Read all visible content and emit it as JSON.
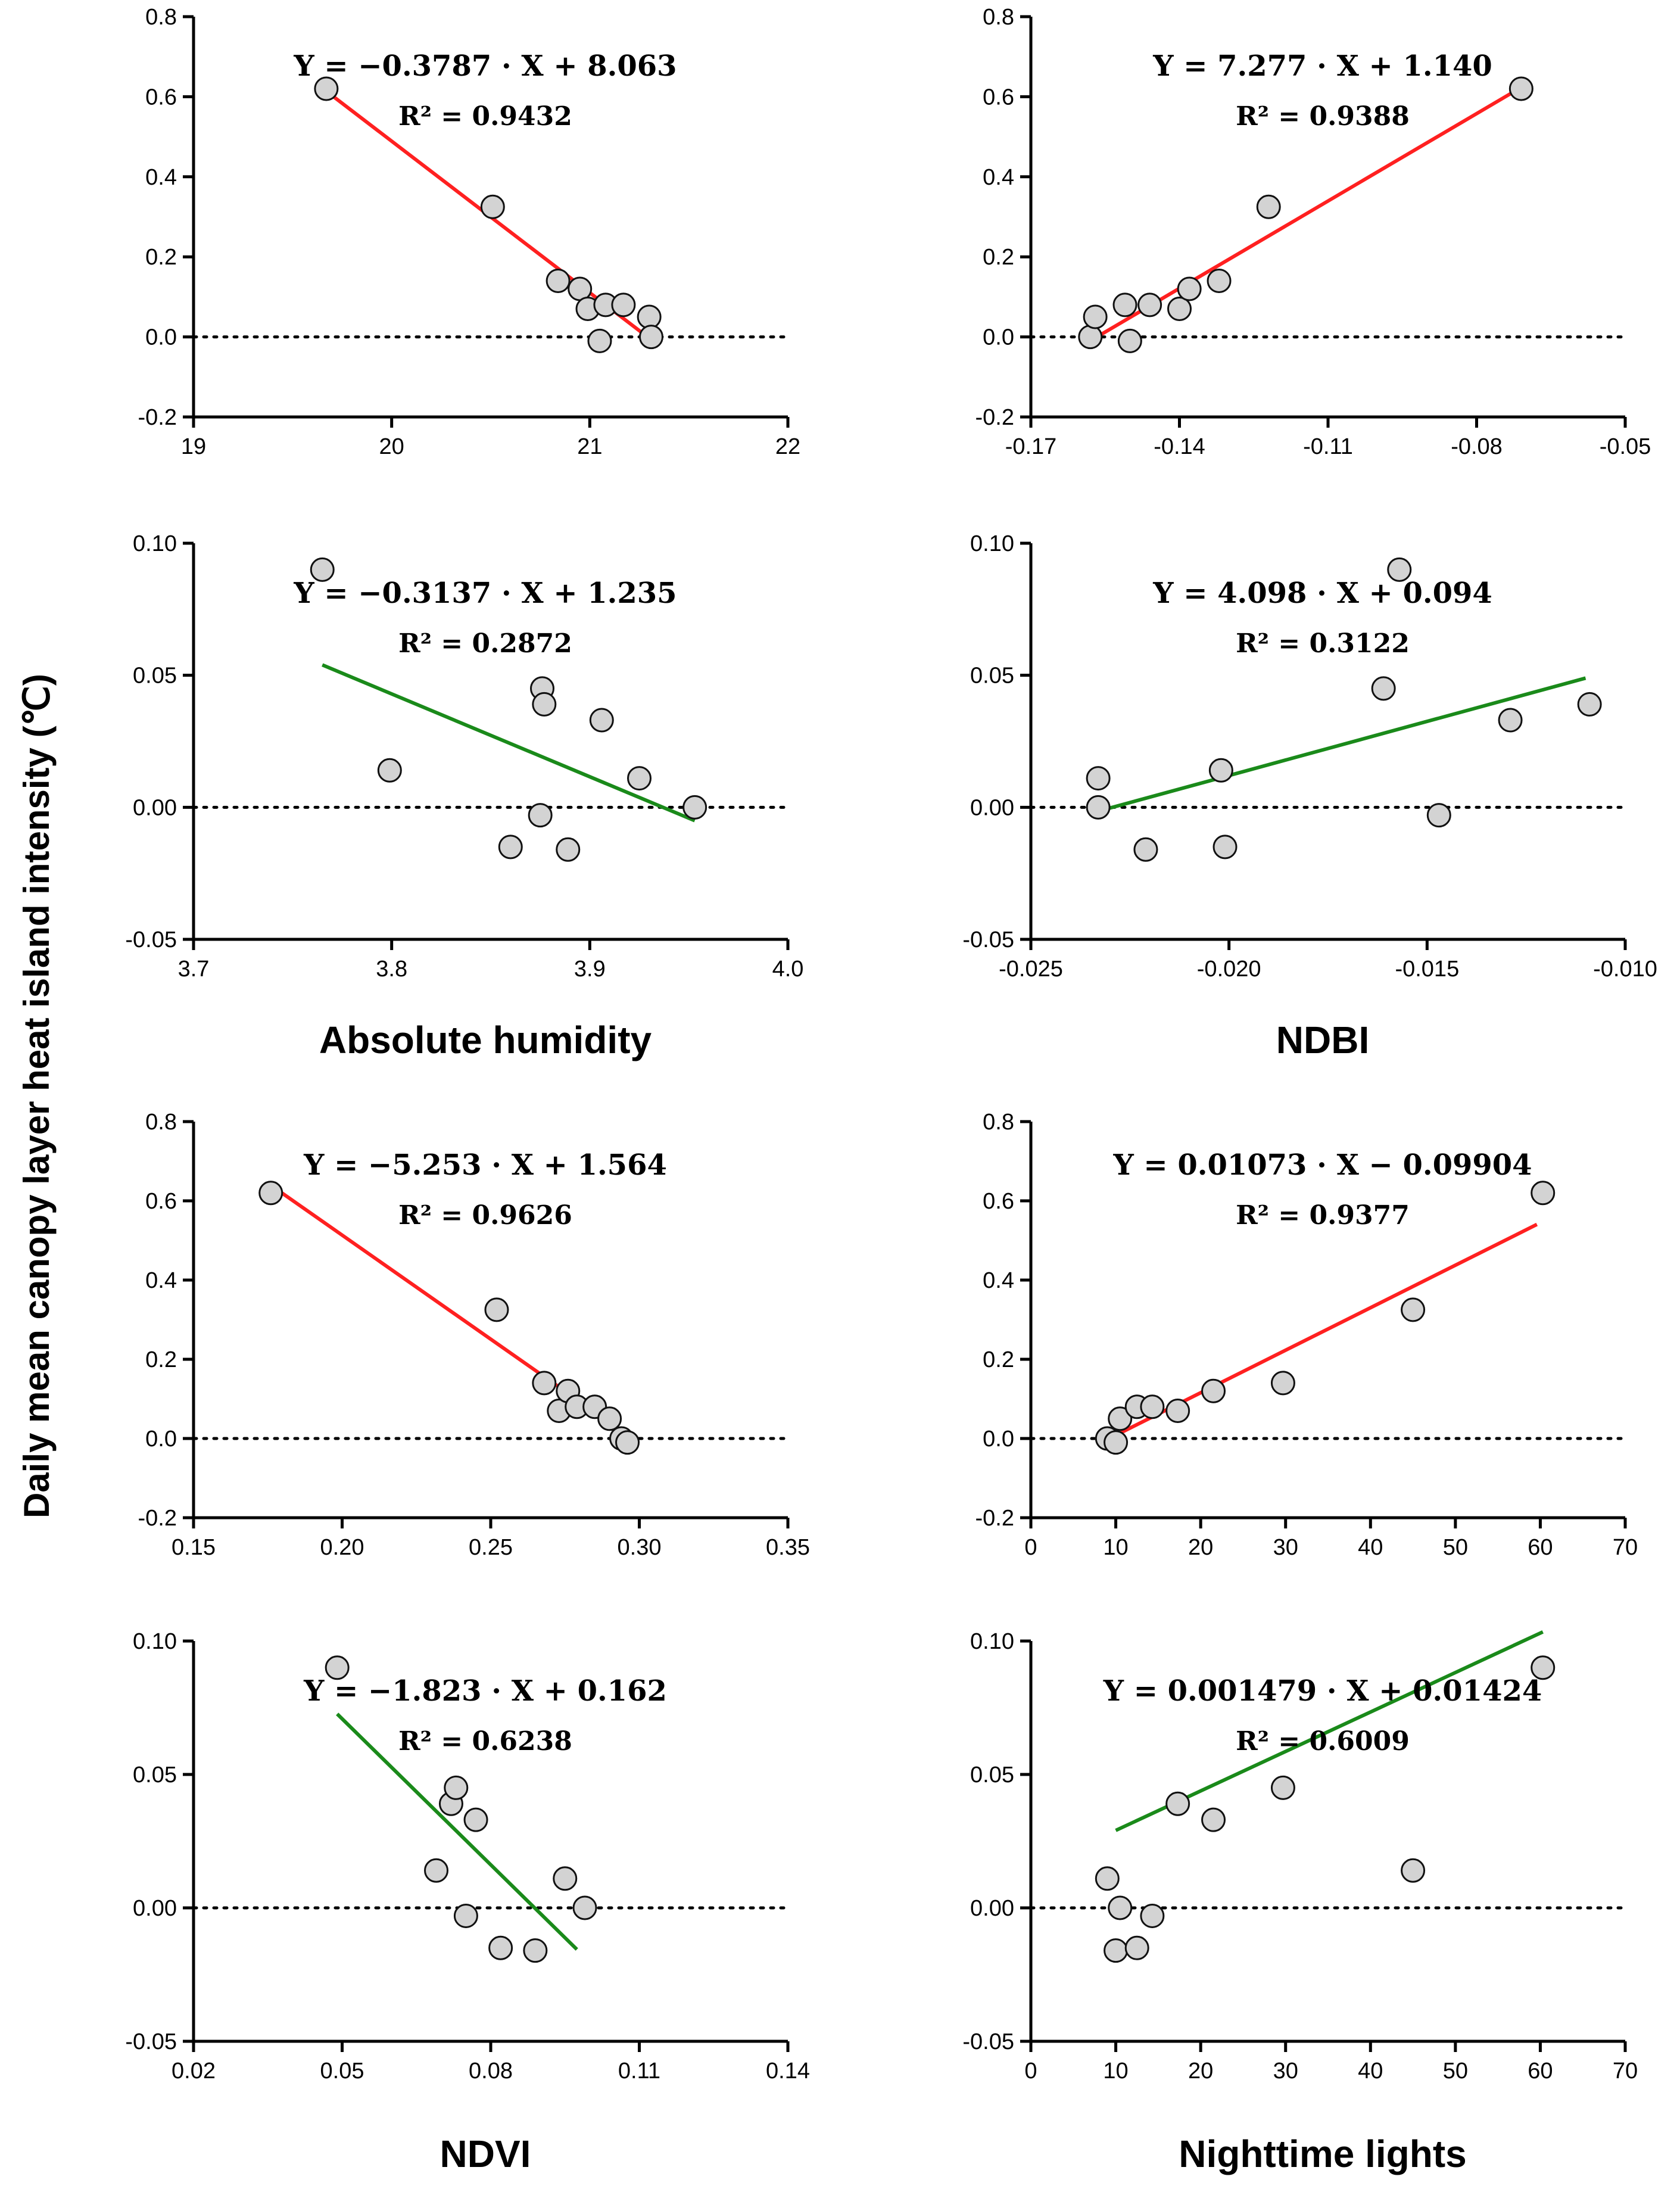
{
  "figure": {
    "ylabel": "Daily mean canopy layer heat island intensity (℃)",
    "colors": {
      "positive": "#ff2020",
      "weak": "#1a8a1a",
      "point_fill": "#d3d3d3",
      "point_edge": "#111111",
      "axis": "#000000"
    }
  },
  "chart_data": [
    {
      "id": "ah-top",
      "type": "scatter",
      "xlabel": "",
      "xlim": [
        19,
        22
      ],
      "ylim": [
        -0.2,
        0.8
      ],
      "xticks": [
        19,
        20,
        21,
        22
      ],
      "xtick_labels": [
        "19",
        "20",
        "21",
        "22"
      ],
      "yticks": [
        -0.2,
        0.0,
        0.2,
        0.4,
        0.6,
        0.8
      ],
      "ytick_labels": [
        "-0.2",
        "0.0",
        "0.2",
        "0.4",
        "0.6",
        "0.8"
      ],
      "x": [
        19.67,
        20.51,
        20.84,
        20.95,
        20.99,
        21.05,
        21.08,
        21.17,
        21.3,
        21.31
      ],
      "y": [
        0.62,
        0.325,
        0.14,
        0.12,
        0.07,
        -0.01,
        0.08,
        0.08,
        0.05,
        0.0
      ],
      "fit": {
        "slope": -0.3787,
        "intercept": 8.063,
        "x_range": [
          19.67,
          21.31
        ],
        "color": "positive"
      },
      "equation": "Y = −0.3787 · X + 8.063",
      "r2_label": "R² = 0.9432"
    },
    {
      "id": "ndbi-top",
      "type": "scatter",
      "xlabel": "",
      "xlim": [
        -0.17,
        -0.05
      ],
      "ylim": [
        -0.2,
        0.8
      ],
      "xticks": [
        -0.17,
        -0.14,
        -0.11,
        -0.08,
        -0.05
      ],
      "xtick_labels": [
        "-0.17",
        "-0.14",
        "-0.11",
        "-0.08",
        "-0.05"
      ],
      "yticks": [
        -0.2,
        0.0,
        0.2,
        0.4,
        0.6,
        0.8
      ],
      "ytick_labels": [
        "-0.2",
        "0.0",
        "0.2",
        "0.4",
        "0.6",
        "0.8"
      ],
      "x": [
        -0.158,
        -0.157,
        -0.151,
        -0.15,
        -0.146,
        -0.14,
        -0.138,
        -0.132,
        -0.122,
        -0.071
      ],
      "y": [
        0.0,
        0.05,
        0.08,
        -0.01,
        0.08,
        0.07,
        0.12,
        0.14,
        0.325,
        0.62
      ],
      "fit": {
        "slope": 7.277,
        "intercept": 1.14,
        "x_range": [
          -0.157,
          -0.0711
        ],
        "color": "positive"
      },
      "equation": "Y = 7.277 · X + 1.140",
      "r2_label": "R² = 0.9388"
    },
    {
      "id": "ah-bottom",
      "type": "scatter",
      "xlabel": "Absolute humidity",
      "xlim": [
        3.7,
        4.0
      ],
      "ylim": [
        -0.05,
        0.1
      ],
      "xticks": [
        3.7,
        3.8,
        3.9,
        4.0
      ],
      "xtick_labels": [
        "3.7",
        "3.8",
        "3.9",
        "4.0"
      ],
      "yticks": [
        -0.05,
        0.0,
        0.05,
        0.1
      ],
      "ytick_labels": [
        "-0.05",
        "0.00",
        "0.05",
        "0.10"
      ],
      "x": [
        3.765,
        3.799,
        3.86,
        3.875,
        3.876,
        3.877,
        3.889,
        3.906,
        3.925,
        3.953
      ],
      "y": [
        0.09,
        0.014,
        -0.015,
        -0.003,
        0.045,
        0.039,
        -0.016,
        0.033,
        0.011,
        0.0
      ],
      "fit": {
        "slope": -0.3137,
        "intercept": 1.235,
        "x_range": [
          3.765,
          3.953
        ],
        "color": "weak"
      },
      "equation": "Y = −0.3137 · X + 1.235",
      "r2_label": "R² = 0.2872"
    },
    {
      "id": "ndbi-bottom",
      "type": "scatter",
      "xlabel": "NDBI",
      "xlim": [
        -0.025,
        -0.01
      ],
      "ylim": [
        -0.05,
        0.1
      ],
      "xticks": [
        -0.025,
        -0.02,
        -0.015,
        -0.01
      ],
      "xtick_labels": [
        "-0.025",
        "-0.020",
        "-0.015",
        "-0.010"
      ],
      "yticks": [
        -0.05,
        0.0,
        0.05,
        0.1
      ],
      "ytick_labels": [
        "-0.05",
        "0.00",
        "0.05",
        "0.10"
      ],
      "x": [
        -0.0233,
        -0.0233,
        -0.0221,
        -0.0202,
        -0.0201,
        -0.0161,
        -0.0157,
        -0.0147,
        -0.0129,
        -0.0109
      ],
      "y": [
        0.011,
        0.0,
        -0.016,
        0.014,
        -0.015,
        0.045,
        0.09,
        -0.003,
        0.033,
        0.039
      ],
      "fit": {
        "slope": 4.098,
        "intercept": 0.094,
        "x_range": [
          -0.0233,
          -0.011
        ],
        "color": "weak"
      },
      "equation": "Y = 4.098 · X + 0.094",
      "r2_label": "R² = 0.3122"
    },
    {
      "id": "ndvi-top",
      "type": "scatter",
      "xlabel": "",
      "xlim": [
        0.15,
        0.35
      ],
      "ylim": [
        -0.2,
        0.8
      ],
      "xticks": [
        0.15,
        0.2,
        0.25,
        0.3,
        0.35
      ],
      "xtick_labels": [
        "0.15",
        "0.20",
        "0.25",
        "0.30",
        "0.35"
      ],
      "yticks": [
        -0.2,
        0.0,
        0.2,
        0.4,
        0.6,
        0.8
      ],
      "ytick_labels": [
        "-0.2",
        "0.0",
        "0.2",
        "0.4",
        "0.6",
        "0.8"
      ],
      "x": [
        0.176,
        0.252,
        0.268,
        0.273,
        0.276,
        0.279,
        0.285,
        0.29,
        0.294,
        0.296
      ],
      "y": [
        0.62,
        0.325,
        0.14,
        0.07,
        0.12,
        0.08,
        0.08,
        0.05,
        0.0,
        -0.01
      ],
      "fit": {
        "slope": -5.253,
        "intercept": 1.564,
        "x_range": [
          0.176,
          0.296
        ],
        "color": "positive"
      },
      "equation": "Y = −5.253 · X + 1.564",
      "r2_label": "R² = 0.9626"
    },
    {
      "id": "ntl-top",
      "type": "scatter",
      "xlabel": "",
      "xlim": [
        0,
        70
      ],
      "ylim": [
        -0.2,
        0.8
      ],
      "xticks": [
        0,
        10,
        20,
        30,
        40,
        50,
        60,
        70
      ],
      "xtick_labels": [
        "0",
        "10",
        "20",
        "30",
        "40",
        "50",
        "60",
        "70"
      ],
      "yticks": [
        -0.2,
        0.0,
        0.2,
        0.4,
        0.6,
        0.8
      ],
      "ytick_labels": [
        "-0.2",
        "0.0",
        "0.2",
        "0.4",
        "0.6",
        "0.8"
      ],
      "x": [
        9.0,
        10.0,
        10.5,
        12.5,
        14.3,
        17.3,
        21.5,
        29.7,
        45.0,
        60.3
      ],
      "y": [
        0.0,
        -0.01,
        0.05,
        0.08,
        0.08,
        0.07,
        0.12,
        0.14,
        0.325,
        0.62
      ],
      "fit": {
        "slope": 0.01073,
        "intercept": -0.09904,
        "x_range": [
          9.23,
          59.6
        ],
        "color": "positive"
      },
      "equation": "Y = 0.01073 · X − 0.09904",
      "r2_label": "R² = 0.9377"
    },
    {
      "id": "ndvi-bottom",
      "type": "scatter",
      "xlabel": "NDVI",
      "xlim": [
        0.02,
        0.14
      ],
      "ylim": [
        -0.05,
        0.1
      ],
      "xticks": [
        0.02,
        0.05,
        0.08,
        0.11,
        0.14
      ],
      "xtick_labels": [
        "0.02",
        "0.05",
        "0.08",
        "0.11",
        "0.14"
      ],
      "yticks": [
        -0.05,
        0.0,
        0.05,
        0.1
      ],
      "ytick_labels": [
        "-0.05",
        "0.00",
        "0.05",
        "0.10"
      ],
      "x": [
        0.049,
        0.069,
        0.072,
        0.073,
        0.075,
        0.077,
        0.082,
        0.089,
        0.095,
        0.099
      ],
      "y": [
        0.09,
        0.014,
        0.039,
        0.045,
        -0.003,
        0.033,
        -0.015,
        -0.016,
        0.011,
        0.0
      ],
      "fit": {
        "slope": -1.823,
        "intercept": 0.162,
        "x_range": [
          0.049,
          0.0974
        ],
        "color": "weak"
      },
      "equation": "Y = −1.823 · X + 0.162",
      "r2_label": "R² = 0.6238"
    },
    {
      "id": "ntl-bottom",
      "type": "scatter",
      "xlabel": "Nighttime lights",
      "xlim": [
        0,
        70
      ],
      "ylim": [
        -0.05,
        0.1
      ],
      "xticks": [
        0,
        10,
        20,
        30,
        40,
        50,
        60,
        70
      ],
      "xtick_labels": [
        "0",
        "10",
        "20",
        "30",
        "40",
        "50",
        "60",
        "70"
      ],
      "yticks": [
        -0.05,
        0.0,
        0.05,
        0.1
      ],
      "ytick_labels": [
        "-0.05",
        "0.00",
        "0.05",
        "0.10"
      ],
      "x": [
        9.0,
        10.0,
        10.5,
        12.5,
        14.3,
        17.3,
        21.5,
        29.7,
        45.0,
        60.3
      ],
      "y": [
        0.011,
        -0.016,
        0.0,
        -0.015,
        -0.003,
        0.039,
        0.033,
        0.045,
        0.014,
        0.09
      ],
      "fit": {
        "slope": 0.001479,
        "intercept": 0.01424,
        "x_range": [
          10.0,
          60.3
        ],
        "color": "weak"
      },
      "equation": "Y = 0.001479 · X + 0.01424",
      "r2_label": "R² = 0.6009"
    }
  ]
}
